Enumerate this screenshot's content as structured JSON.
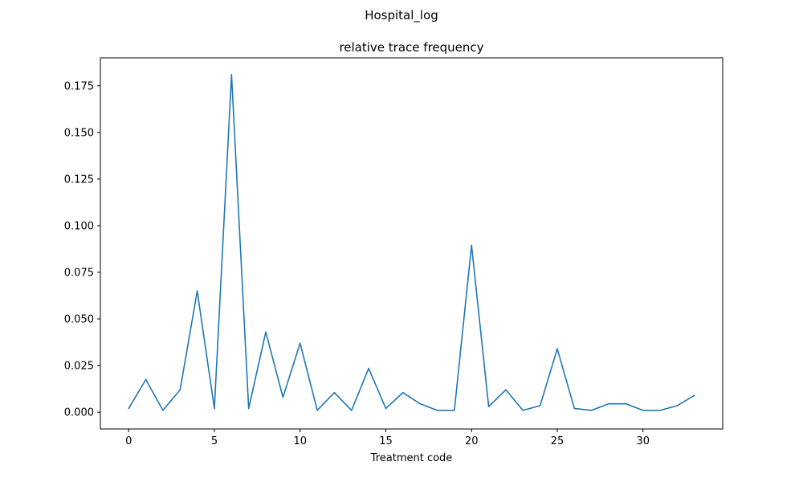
{
  "figure_title": "Hospital_log",
  "chart_data": {
    "type": "line",
    "title": "relative trace frequency",
    "xlabel": "Treatment code",
    "ylabel": "",
    "xlim": [
      -1.65,
      34.65
    ],
    "ylim": [
      -0.009,
      0.19
    ],
    "xticks": [
      0,
      5,
      10,
      15,
      20,
      25,
      30
    ],
    "xtick_labels": [
      "0",
      "5",
      "10",
      "15",
      "20",
      "25",
      "30"
    ],
    "yticks": [
      0.0,
      0.025,
      0.05,
      0.075,
      0.1,
      0.125,
      0.15,
      0.175
    ],
    "ytick_labels": [
      "0.000",
      "0.025",
      "0.050",
      "0.075",
      "0.100",
      "0.125",
      "0.150",
      "0.175"
    ],
    "grid": false,
    "series": [
      {
        "color": "#1f77b4",
        "x": [
          0,
          1,
          2,
          3,
          4,
          5,
          6,
          7,
          8,
          9,
          10,
          11,
          12,
          13,
          14,
          15,
          16,
          17,
          18,
          19,
          20,
          21,
          22,
          23,
          24,
          25,
          26,
          27,
          28,
          29,
          30,
          31,
          32,
          33
        ],
        "y": [
          0.002,
          0.0175,
          0.001,
          0.012,
          0.065,
          0.002,
          0.181,
          0.002,
          0.043,
          0.008,
          0.037,
          0.001,
          0.0105,
          0.001,
          0.0235,
          0.002,
          0.0105,
          0.0045,
          0.001,
          0.001,
          0.0895,
          0.003,
          0.012,
          0.001,
          0.0035,
          0.034,
          0.002,
          0.001,
          0.0045,
          0.0045,
          0.001,
          0.001,
          0.0035,
          0.009
        ]
      }
    ]
  }
}
